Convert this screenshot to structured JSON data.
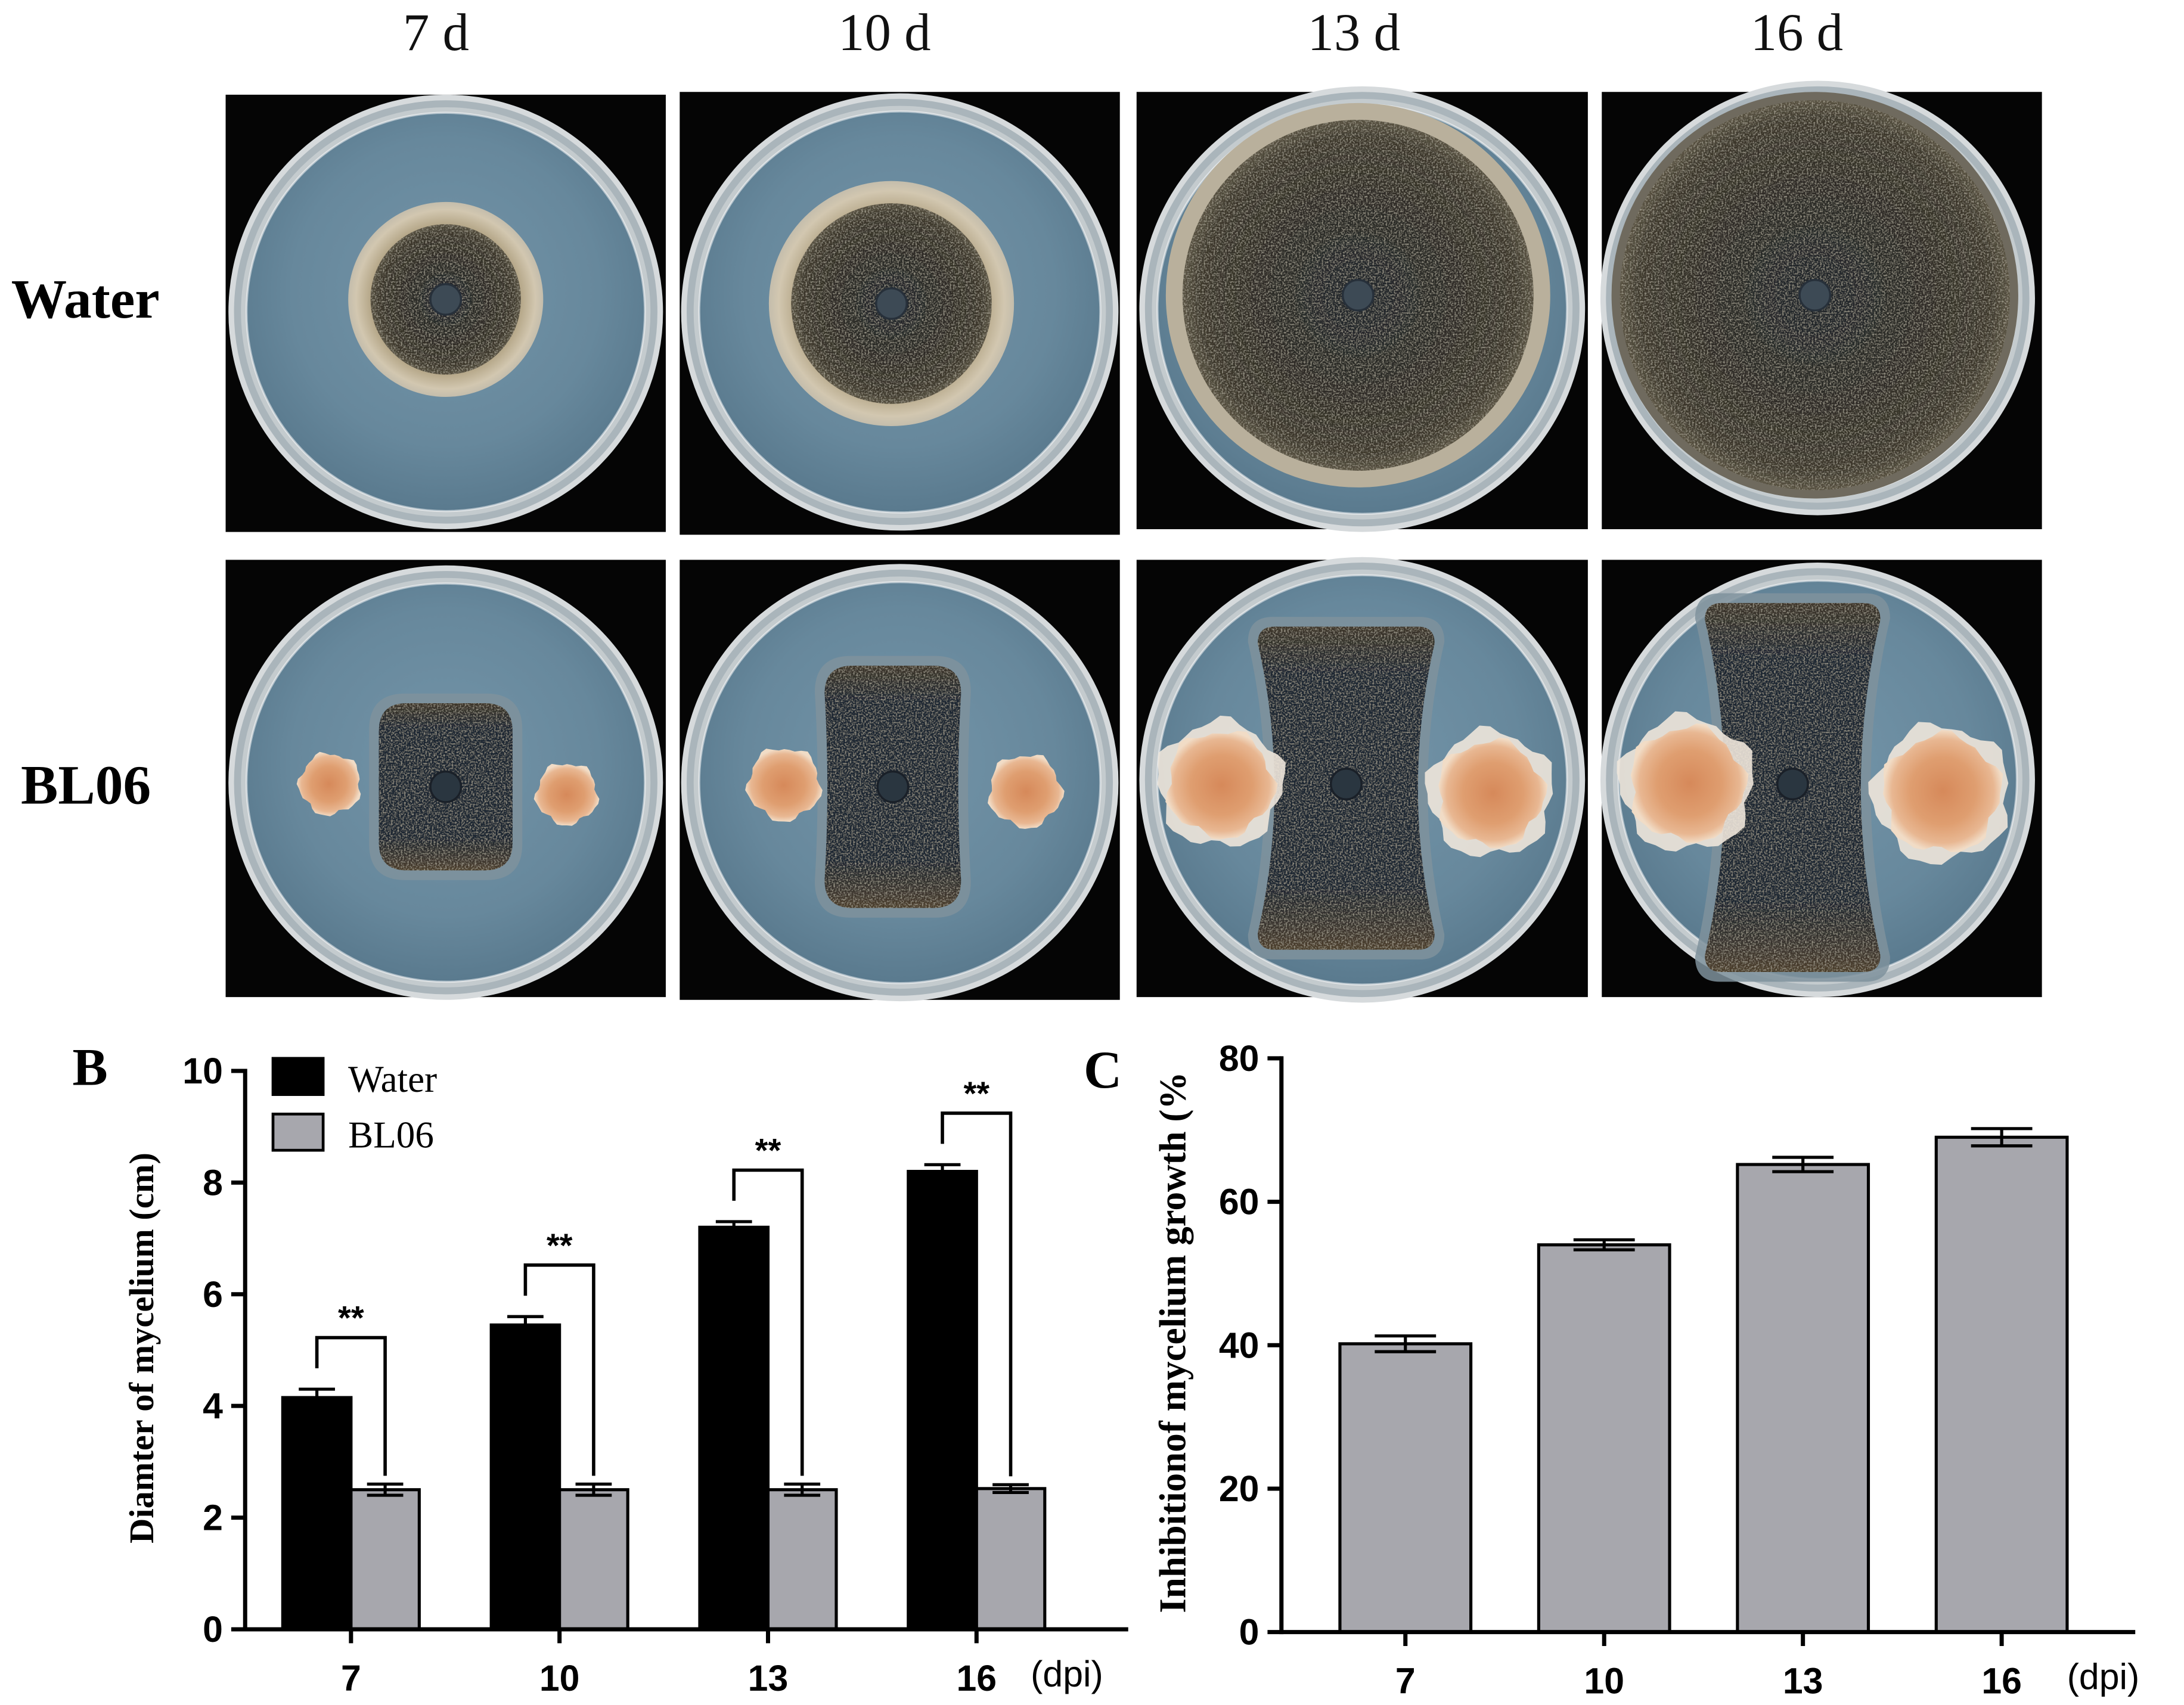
{
  "figure": {
    "column_headers": [
      "7 d",
      "10 d",
      "13 d",
      "16 d"
    ],
    "row_labels": [
      "Water",
      "BL06"
    ],
    "panel_labels": {
      "b": "B",
      "c": "C"
    }
  },
  "chart_data": [
    {
      "panel": "B",
      "type": "bar",
      "categories": [
        "7",
        "10",
        "13",
        "16"
      ],
      "x_unit": "(dpi)",
      "xlabel": "",
      "ylabel": "Diamter of mycelium (cm)",
      "ylim": [
        0,
        10
      ],
      "yticks": [
        0,
        2,
        4,
        6,
        8,
        10
      ],
      "series": [
        {
          "name": "Water",
          "values": [
            4.15,
            5.45,
            7.2,
            8.2
          ],
          "errors": [
            0.15,
            0.15,
            0.1,
            0.12
          ],
          "color": "#000000"
        },
        {
          "name": "BL06",
          "values": [
            2.5,
            2.5,
            2.5,
            2.52
          ],
          "errors": [
            0.1,
            0.1,
            0.1,
            0.07
          ],
          "color": "#a7a7ad"
        }
      ],
      "significance": [
        "**",
        "**",
        "**",
        "**"
      ],
      "legend": "top-left",
      "grid": false
    },
    {
      "panel": "C",
      "type": "bar",
      "categories": [
        "7",
        "10",
        "13",
        "16"
      ],
      "x_unit": "(dpi)",
      "xlabel": "",
      "ylabel": "Inhibitionof mycelium growth (%",
      "ylim": [
        0,
        80
      ],
      "yticks": [
        0,
        20,
        40,
        60,
        80
      ],
      "series": [
        {
          "values": [
            40.2,
            54.0,
            65.2,
            69.0
          ],
          "errors": [
            1.1,
            0.7,
            1.0,
            1.2
          ],
          "color": "#a7a7ad"
        }
      ],
      "grid": false
    }
  ]
}
